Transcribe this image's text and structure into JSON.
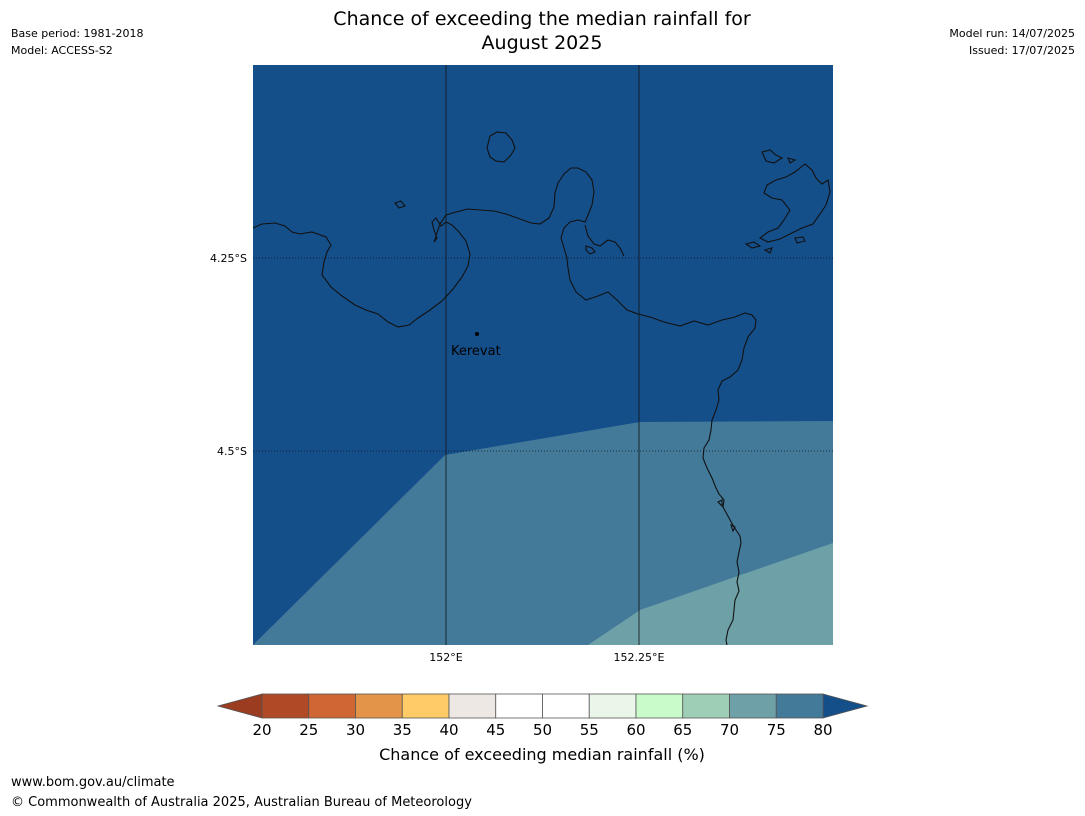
{
  "header": {
    "title_line1": "Chance of exceeding the median rainfall for",
    "title_line2": "August 2025",
    "base_period": "Base period: 1981-2018",
    "model": "Model: ACCESS-S2",
    "model_run": "Model run: 14/07/2025",
    "issued": "Issued: 17/07/2025"
  },
  "map": {
    "lat_labels": [
      "4.25°S",
      "4.5°S"
    ],
    "lon_labels": [
      "152°E",
      "152.25°E"
    ],
    "place": "Kerevat",
    "ocean_color": "#154f8a"
  },
  "colorbar": {
    "ticks": [
      "20",
      "25",
      "30",
      "35",
      "40",
      "45",
      "50",
      "55",
      "60",
      "65",
      "70",
      "75",
      "80"
    ],
    "under_color": "#9b3b20",
    "over_color": "#154f8a",
    "colors": [
      "#b04a26",
      "#d06634",
      "#e39449",
      "#fecb66",
      "#ede8e4",
      "#ffffff",
      "#ffffff",
      "#ebf6ea",
      "#c8fbc9",
      "#9fceb7",
      "#6ea1a7",
      "#437a9a"
    ],
    "label": "Chance of exceeding median rainfall (%)"
  },
  "footer": {
    "url": "www.bom.gov.au/climate",
    "copyright": "© Commonwealth of Australia 2025, Australian Bureau of Meteorology"
  }
}
